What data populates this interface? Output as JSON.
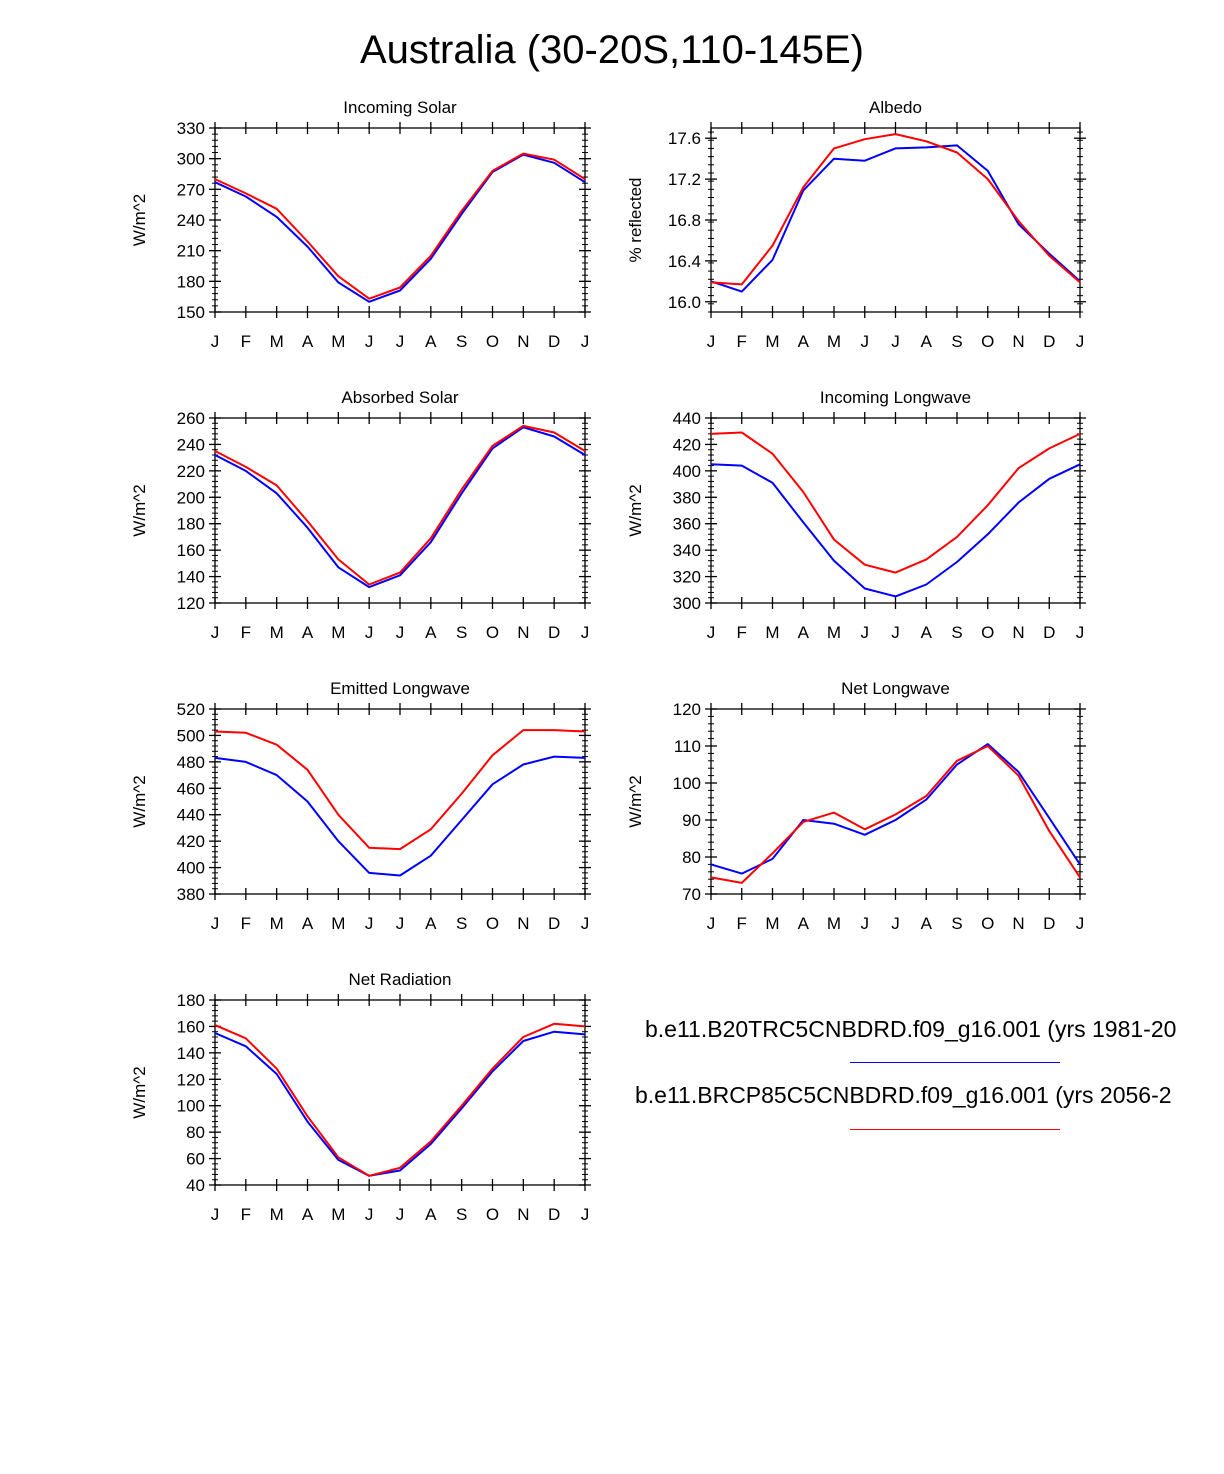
{
  "title": "Australia (30-20S,110-145E)",
  "colors": {
    "control": "#0000ff",
    "future": "#ff0000",
    "axis": "#000000"
  },
  "legend": [
    {
      "label": "b.e11.B20TRC5CNBDRD.f09_g16.001 (yrs 1981-20",
      "color": "#0000ff"
    },
    {
      "label": "b.e11.BRCP85C5CNBDRD.f09_g16.001 (yrs 2056-2",
      "color": "#ff0000"
    }
  ],
  "chart_data": [
    {
      "type": "line",
      "title": "Incoming Solar",
      "ylabel": "W/m^2",
      "ylim": [
        150,
        330
      ],
      "yticks": [
        "150",
        "180",
        "210",
        "240",
        "270",
        "300",
        "330"
      ],
      "categories": [
        "J",
        "F",
        "M",
        "A",
        "M",
        "J",
        "J",
        "A",
        "S",
        "O",
        "N",
        "D",
        "J"
      ],
      "series": [
        {
          "name": "b.e11.B20TRC5CNBDRD.f09_g16.001",
          "color": "#0000ff",
          "values": [
            277,
            263,
            243,
            214,
            179,
            160,
            171,
            202,
            246,
            287,
            304,
            296,
            277
          ]
        },
        {
          "name": "b.e11.BRCP85C5CNBDRD.f09_g16.001",
          "color": "#ff0000",
          "values": [
            280,
            266,
            251,
            219,
            185,
            163,
            174,
            205,
            249,
            288,
            305,
            299,
            280
          ]
        }
      ]
    },
    {
      "type": "line",
      "title": "Albedo",
      "ylabel": "% reflected",
      "ylim": [
        15.9,
        17.7
      ],
      "yticks": [
        "16.0",
        "16.4",
        "16.8",
        "17.2",
        "17.6"
      ],
      "categories": [
        "J",
        "F",
        "M",
        "A",
        "M",
        "J",
        "J",
        "A",
        "S",
        "O",
        "N",
        "D",
        "J"
      ],
      "series": [
        {
          "name": "b.e11.B20TRC5CNBDRD.f09_g16.001",
          "color": "#0000ff",
          "values": [
            16.2,
            16.1,
            16.41,
            17.09,
            17.4,
            17.38,
            17.5,
            17.51,
            17.53,
            17.28,
            16.76,
            16.47,
            16.2
          ]
        },
        {
          "name": "b.e11.BRCP85C5CNBDRD.f09_g16.001",
          "color": "#ff0000",
          "values": [
            16.19,
            16.17,
            16.55,
            17.12,
            17.5,
            17.59,
            17.64,
            17.57,
            17.46,
            17.2,
            16.79,
            16.45,
            16.19
          ]
        }
      ]
    },
    {
      "type": "line",
      "title": "Absorbed Solar",
      "ylabel": "W/m^2",
      "ylim": [
        120,
        260
      ],
      "yticks": [
        "120",
        "140",
        "160",
        "180",
        "200",
        "220",
        "240",
        "260"
      ],
      "categories": [
        "J",
        "F",
        "M",
        "A",
        "M",
        "J",
        "J",
        "A",
        "S",
        "O",
        "N",
        "D",
        "J"
      ],
      "series": [
        {
          "name": "b.e11.B20TRC5CNBDRD.f09_g16.001",
          "color": "#0000ff",
          "values": [
            232,
            220,
            203,
            177,
            147,
            132,
            141,
            166,
            203,
            237,
            253,
            246,
            232
          ]
        },
        {
          "name": "b.e11.BRCP85C5CNBDRD.f09_g16.001",
          "color": "#ff0000",
          "values": [
            235,
            223,
            209,
            182,
            153,
            134,
            143,
            169,
            206,
            239,
            254,
            249,
            235
          ]
        }
      ]
    },
    {
      "type": "line",
      "title": "Incoming Longwave",
      "ylabel": "W/m^2",
      "ylim": [
        300,
        440
      ],
      "yticks": [
        "300",
        "320",
        "340",
        "360",
        "380",
        "400",
        "420",
        "440"
      ],
      "categories": [
        "J",
        "F",
        "M",
        "A",
        "M",
        "J",
        "J",
        "A",
        "S",
        "O",
        "N",
        "D",
        "J"
      ],
      "series": [
        {
          "name": "b.e11.B20TRC5CNBDRD.f09_g16.001",
          "color": "#0000ff",
          "values": [
            405,
            404,
            391,
            361,
            332,
            311,
            305,
            314,
            331,
            352,
            376,
            394,
            405
          ]
        },
        {
          "name": "b.e11.BRCP85C5CNBDRD.f09_g16.001",
          "color": "#ff0000",
          "values": [
            428,
            429,
            413,
            384,
            348,
            329,
            323,
            333,
            350,
            374,
            402,
            417,
            428
          ]
        }
      ]
    },
    {
      "type": "line",
      "title": "Emitted Longwave",
      "ylabel": "W/m^2",
      "ylim": [
        380,
        520
      ],
      "yticks": [
        "380",
        "400",
        "420",
        "440",
        "460",
        "480",
        "500",
        "520"
      ],
      "categories": [
        "J",
        "F",
        "M",
        "A",
        "M",
        "J",
        "J",
        "A",
        "S",
        "O",
        "N",
        "D",
        "J"
      ],
      "series": [
        {
          "name": "b.e11.B20TRC5CNBDRD.f09_g16.001",
          "color": "#0000ff",
          "values": [
            483,
            480,
            470,
            450,
            420,
            396,
            394,
            409,
            436,
            463,
            478,
            484,
            483
          ]
        },
        {
          "name": "b.e11.BRCP85C5CNBDRD.f09_g16.001",
          "color": "#ff0000",
          "values": [
            503,
            502,
            493,
            474,
            440,
            415,
            414,
            429,
            456,
            485,
            504,
            504,
            503
          ]
        }
      ]
    },
    {
      "type": "line",
      "title": "Net Longwave",
      "ylabel": "W/m^2",
      "ylim": [
        70,
        120
      ],
      "yticks": [
        "70",
        "80",
        "90",
        "100",
        "110",
        "120"
      ],
      "categories": [
        "J",
        "F",
        "M",
        "A",
        "M",
        "J",
        "J",
        "A",
        "S",
        "O",
        "N",
        "D",
        "J"
      ],
      "series": [
        {
          "name": "b.e11.B20TRC5CNBDRD.f09_g16.001",
          "color": "#0000ff",
          "values": [
            78,
            75.5,
            79.5,
            90,
            89,
            86,
            90,
            95.5,
            105,
            110.5,
            103,
            90.5,
            78
          ]
        },
        {
          "name": "b.e11.BRCP85C5CNBDRD.f09_g16.001",
          "color": "#ff0000",
          "values": [
            74.5,
            73,
            81,
            89.5,
            92,
            87.5,
            91.5,
            96.5,
            106,
            110,
            102,
            87,
            74.5
          ]
        }
      ]
    },
    {
      "type": "line",
      "title": "Net Radiation",
      "ylabel": "W/m^2",
      "ylim": [
        40,
        180
      ],
      "yticks": [
        "40",
        "60",
        "80",
        "100",
        "120",
        "140",
        "160",
        "180"
      ],
      "categories": [
        "J",
        "F",
        "M",
        "A",
        "M",
        "J",
        "J",
        "A",
        "S",
        "O",
        "N",
        "D",
        "J"
      ],
      "series": [
        {
          "name": "b.e11.B20TRC5CNBDRD.f09_g16.001",
          "color": "#0000ff",
          "values": [
            155,
            145,
            124,
            88,
            59,
            47,
            51,
            71,
            98,
            126,
            149,
            156,
            154
          ]
        },
        {
          "name": "b.e11.BRCP85C5CNBDRD.f09_g16.001",
          "color": "#ff0000",
          "values": [
            161,
            151,
            128,
            92,
            61,
            47,
            53,
            73,
            100,
            128,
            152,
            162,
            160
          ]
        }
      ]
    }
  ]
}
